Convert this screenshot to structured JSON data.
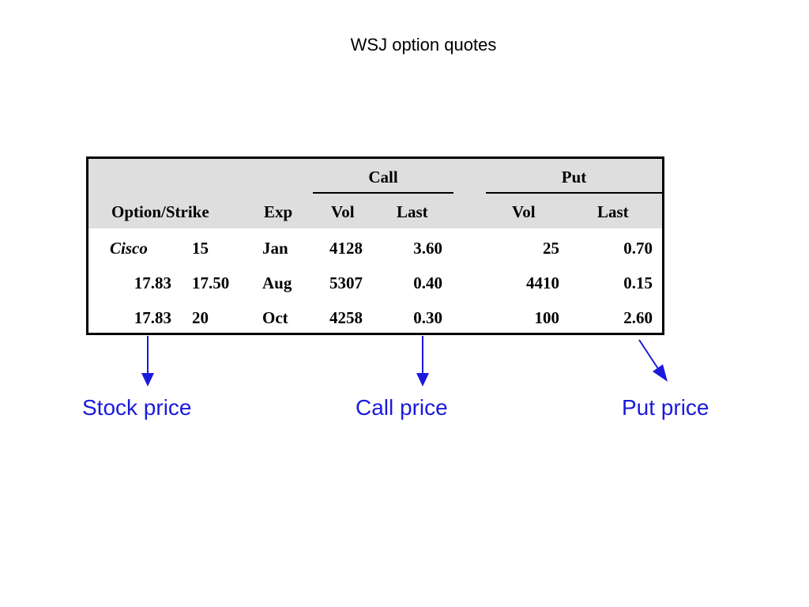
{
  "slide": {
    "title": "WSJ option quotes"
  },
  "table": {
    "groups": {
      "call": "Call",
      "put": "Put"
    },
    "columns": {
      "option_strike": "Option/Strike",
      "exp": "Exp",
      "call_vol": "Vol",
      "call_last": "Last",
      "put_vol": "Vol",
      "put_last": "Last"
    },
    "rows": [
      {
        "option": "Cisco",
        "strike": "15",
        "exp": "Jan",
        "call_vol": "4128",
        "call_last": "3.60",
        "put_vol": "25",
        "put_last": "0.70"
      },
      {
        "option": "17.83",
        "strike": "17.50",
        "exp": "Aug",
        "call_vol": "5307",
        "call_last": "0.40",
        "put_vol": "4410",
        "put_last": "0.15"
      },
      {
        "option": "17.83",
        "strike": "20",
        "exp": "Oct",
        "call_vol": "4258",
        "call_last": "0.30",
        "put_vol": "100",
        "put_last": "2.60"
      }
    ]
  },
  "annotations": {
    "stock_price": "Stock price",
    "call_price": "Call price",
    "put_price": "Put price"
  },
  "colors": {
    "annotation": "#1a1adb",
    "header_band": "#dedede",
    "border": "#000000"
  }
}
